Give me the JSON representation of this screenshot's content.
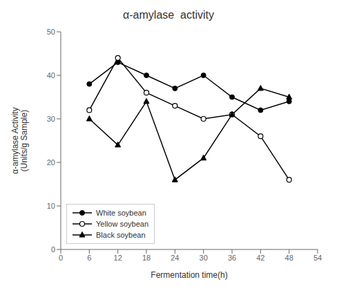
{
  "chart_data": {
    "type": "line",
    "title": "α-amylase  activity",
    "xlabel": "Fermentation time(h)",
    "ylabel": "α-amylase Activity\n(Units/g Sample)",
    "x": [
      6,
      12,
      18,
      24,
      30,
      36,
      42,
      48
    ],
    "series": [
      {
        "name": "White soybean",
        "color": "#000000",
        "marker": "circle",
        "values": [
          38,
          43,
          40,
          37,
          40,
          35,
          32,
          34
        ]
      },
      {
        "name": "Yellow soybean",
        "color": "#000000",
        "marker": "open_circle",
        "values": [
          32,
          44,
          36,
          33,
          30,
          31,
          26,
          16
        ]
      },
      {
        "name": "Black soybean",
        "color": "#000000",
        "marker": "triangle",
        "values": [
          30,
          24,
          34,
          16,
          21,
          31,
          37,
          35
        ]
      }
    ],
    "xlim": [
      0,
      54
    ],
    "ylim": [
      0,
      50
    ],
    "xticks": [
      0,
      6,
      12,
      18,
      24,
      30,
      36,
      42,
      48,
      54
    ],
    "yticks": [
      0,
      10,
      20,
      30,
      40,
      50
    ],
    "grid": false,
    "legend": "lower left"
  }
}
